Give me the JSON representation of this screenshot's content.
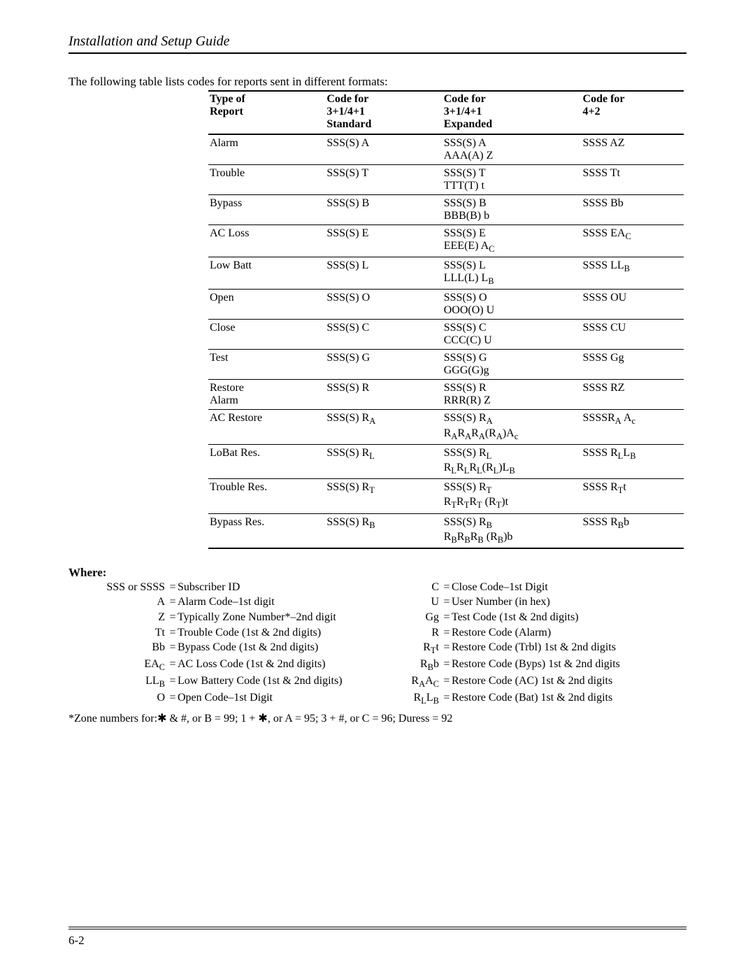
{
  "header_title": "Installation and Setup Guide",
  "intro_text": "The following table lists codes for reports sent in different formats:",
  "page_footer": "6-2",
  "table": {
    "headers": {
      "type_l1": "Type of",
      "type_l2": "Report",
      "std_l1": "Code for",
      "std_l2": "3+1/4+1",
      "std_l3": "Standard",
      "exp_l1": "Code for",
      "exp_l2": "3+1/4+1",
      "exp_l3": "Expanded",
      "c42_l1": "Code for",
      "c42_l2": "4+2"
    },
    "rows": [
      {
        "type": "Alarm",
        "std": "SSS(S) A",
        "exp": "SSS(S) A<br>AAA(A) Z",
        "c42": "SSSS AZ"
      },
      {
        "type": "Trouble",
        "std": "SSS(S) T",
        "exp": "SSS(S) T<br>TTT(T) t",
        "c42": "SSSS Tt"
      },
      {
        "type": "Bypass",
        "std": "SSS(S) B",
        "exp": "SSS(S) B<br>BBB(B) b",
        "c42": "SSSS Bb"
      },
      {
        "type": "AC Loss",
        "std": "SSS(S) E",
        "exp": "SSS(S) E<br>EEE(E) A<sub>C</sub>",
        "c42": "SSSS EA<sub>C</sub>"
      },
      {
        "type": "Low Batt",
        "std": "SSS(S) L",
        "exp": "SSS(S) L<br>LLL(L) L<sub>B</sub>",
        "c42": "SSSS LL<sub>B</sub>"
      },
      {
        "type": "Open",
        "std": "SSS(S) O",
        "exp": "SSS(S) O<br>OOO(O) U",
        "c42": "SSSS OU"
      },
      {
        "type": "Close",
        "std": "SSS(S) C",
        "exp": "SSS(S) C<br>CCC(C) U",
        "c42": "SSSS CU"
      },
      {
        "type": "Test",
        "std": "SSS(S) G",
        "exp": "SSS(S) G<br>GGG(G)g",
        "c42": "SSSS Gg"
      },
      {
        "type": "Restore<br>Alarm",
        "std": "SSS(S) R",
        "exp": "SSS(S) R<br>RRR(R) Z",
        "c42": "SSSS RZ"
      },
      {
        "type": "AC Restore",
        "std": "SSS(S) R<sub>A</sub>",
        "exp": "SSS(S) R<sub>A</sub><br>R<sub>A</sub>R<sub>A</sub>R<sub>A</sub>(R<sub>A</sub>)A<sub>c</sub>",
        "c42": "SSSSR<sub>A</sub> A<sub>c</sub>"
      },
      {
        "type": "LoBat Res.",
        "std": "SSS(S) R<sub>L</sub>",
        "exp": "SSS(S) R<sub>L</sub><br>R<sub>L</sub>R<sub>L</sub>R<sub>L</sub>(R<sub>L</sub>)L<sub>B</sub>",
        "c42": "SSSS R<sub>L</sub>L<sub>B</sub>"
      },
      {
        "type": "Trouble Res.",
        "std": "SSS(S) R<sub>T</sub>",
        "exp": "SSS(S) R<sub>T</sub><br>R<sub>T</sub>R<sub>T</sub>R<sub>T</sub> (R<sub>T</sub>)t",
        "c42": "SSSS R<sub>T</sub>t"
      },
      {
        "type": "Bypass Res.",
        "std": "SSS(S) R<sub>B</sub>",
        "exp": "SSS(S) R<sub>B</sub><br>R<sub>B</sub>R<sub>B</sub>R<sub>B</sub> (R<sub>B</sub>)b",
        "c42": "SSSS R<sub>B</sub>b"
      }
    ]
  },
  "where": {
    "title": "Where:",
    "lines": [
      {
        "lk": "SSS or SSSS",
        "ld": "Subscriber ID",
        "rk": "C",
        "rd": "Close Code–1st Digit"
      },
      {
        "lk": "A",
        "ld": "Alarm Code–1st digit",
        "rk": "U",
        "rd": "User Number (in hex)"
      },
      {
        "lk": "Z",
        "ld": "Typically Zone Number*–2nd digit",
        "rk": "Gg",
        "rd": "Test Code (1st & 2nd digits)"
      },
      {
        "lk": "Tt",
        "ld": "Trouble Code (1st & 2nd digits)",
        "rk": "R",
        "rd": "Restore Code (Alarm)"
      },
      {
        "lk": "Bb",
        "ld": "Bypass Code (1st & 2nd digits)",
        "rk": "R<sub>T</sub>t",
        "rd": "Restore Code (Trbl) 1st & 2nd digits"
      },
      {
        "lk": "EA<sub>C</sub>",
        "ld": "AC Loss Code (1st & 2nd digits)",
        "rk": "R<sub>B</sub>b",
        "rd": "Restore Code (Byps) 1st & 2nd digits"
      },
      {
        "lk": "LL<sub>B</sub>",
        "ld": "Low Battery Code (1st & 2nd digits)",
        "rk": "R<sub>A</sub>A<sub>C</sub>",
        "rd": "Restore Code (AC) 1st & 2nd digits"
      },
      {
        "lk": "O",
        "ld": "Open Code–1st Digit",
        "rk": "R<sub>L</sub>L<sub>B</sub>",
        "rd": "Restore Code (Bat) 1st & 2nd digits"
      }
    ]
  },
  "footnote": "*Zone numbers for:✱ & #, or B = 99; 1 + ✱, or A = 95; 3 + #, or C = 96; Duress = 92"
}
